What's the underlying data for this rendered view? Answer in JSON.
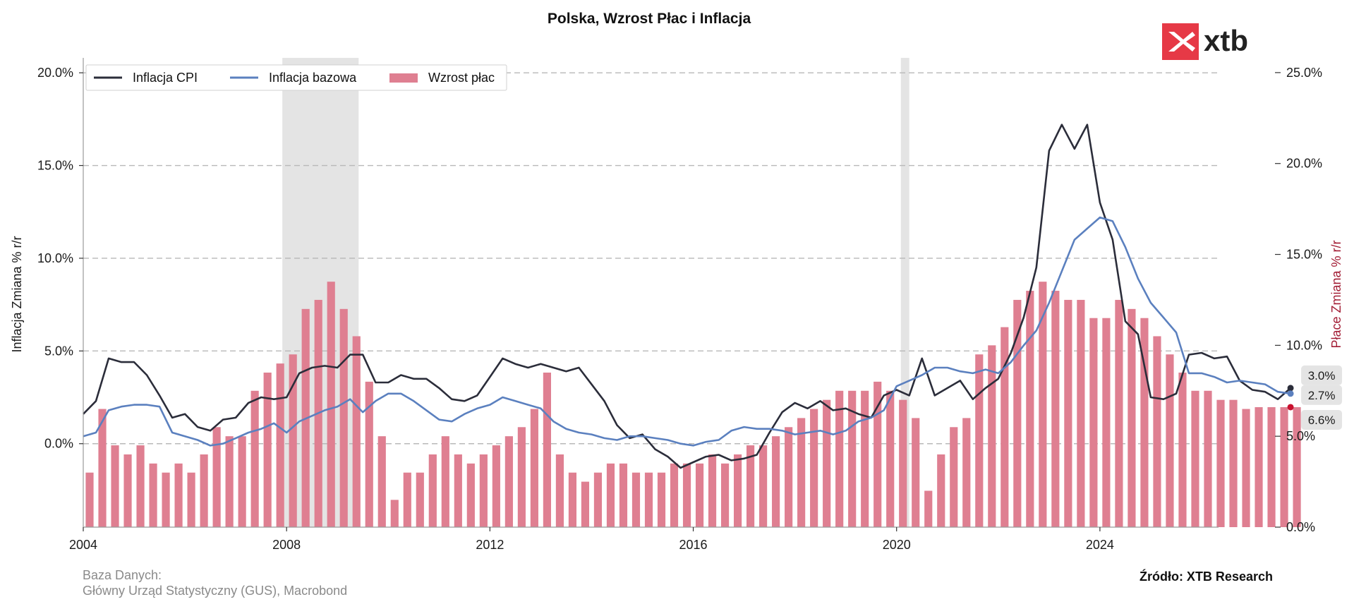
{
  "chart_data": {
    "type": "bar+line",
    "title": "Polska, Wzrost Płac i Inflacja",
    "left_axis": {
      "label": "Inflacja Zmiana % r/r",
      "ylim": [
        -4.5,
        20.5
      ],
      "ticks": [
        0,
        5,
        10,
        15,
        20
      ],
      "tick_labels": [
        "0.0%",
        "5.0%",
        "10.0%",
        "15.0%",
        "20.0%"
      ]
    },
    "right_axis": {
      "label": "Płace Zmiana % r/r",
      "ylim": [
        0,
        25.5
      ],
      "ticks": [
        0,
        5,
        10,
        15,
        20,
        25
      ],
      "tick_labels": [
        "0.0%",
        "5.0%",
        "10.0%",
        "15.0%",
        "20.0%",
        "25.0%"
      ]
    },
    "x_axis": {
      "range": [
        "2004-01",
        "2026-05"
      ],
      "ticks": [
        2004,
        2008,
        2012,
        2016,
        2020,
        2024
      ],
      "tick_labels": [
        "2004",
        "2008",
        "2012",
        "2016",
        "2020",
        "2024"
      ]
    },
    "grid": "horizontal dashed",
    "legend_position": "top-left",
    "shaded_periods": [
      [
        "2007-12",
        "2009-06"
      ],
      [
        "2020-02",
        "2020-04"
      ]
    ],
    "series": [
      {
        "name": "Inflacja CPI",
        "type": "line",
        "axis": "left",
        "color": "#2b2d3a",
        "interval": "quarterly",
        "start": "2004-01",
        "values": [
          1.6,
          2.3,
          4.6,
          4.4,
          4.4,
          3.7,
          2.6,
          1.4,
          1.6,
          0.9,
          0.7,
          1.3,
          1.4,
          2.2,
          2.5,
          2.4,
          2.5,
          3.8,
          4.1,
          4.2,
          4.1,
          4.8,
          4.8,
          3.3,
          3.3,
          3.7,
          3.5,
          3.5,
          3.0,
          2.4,
          2.3,
          2.6,
          3.6,
          4.6,
          4.3,
          4.1,
          4.3,
          4.1,
          3.9,
          4.1,
          3.2,
          2.3,
          1.0,
          0.3,
          0.5,
          -0.3,
          -0.7,
          -1.3,
          -1.0,
          -0.7,
          -0.6,
          -0.9,
          -0.8,
          -0.6,
          0.6,
          1.7,
          2.2,
          1.9,
          2.3,
          1.8,
          1.9,
          1.6,
          1.4,
          2.6,
          2.9,
          2.6,
          4.6,
          2.6,
          3.0,
          3.4,
          2.4,
          3.0,
          3.5,
          4.9,
          6.8,
          9.5,
          15.8,
          17.2,
          15.9,
          17.2,
          13.0,
          11.0,
          6.6,
          5.9,
          2.5,
          2.4,
          2.7,
          4.8,
          4.9,
          4.6,
          4.7,
          3.4,
          2.9,
          2.8,
          2.4,
          3.0
        ]
      },
      {
        "name": "Inflacja bazowa",
        "type": "line",
        "axis": "left",
        "color": "#5b80bf",
        "interval": "quarterly",
        "start": "2004-01",
        "values": [
          0.4,
          0.6,
          1.8,
          2.0,
          2.1,
          2.1,
          2.0,
          0.6,
          0.4,
          0.2,
          -0.1,
          0.0,
          0.3,
          0.6,
          0.8,
          1.1,
          0.6,
          1.2,
          1.5,
          1.8,
          2.0,
          2.4,
          1.7,
          2.3,
          2.7,
          2.7,
          2.3,
          1.8,
          1.3,
          1.2,
          1.6,
          1.9,
          2.1,
          2.5,
          2.3,
          2.1,
          1.9,
          1.2,
          0.8,
          0.6,
          0.5,
          0.3,
          0.2,
          0.4,
          0.4,
          0.3,
          0.2,
          0.0,
          -0.1,
          0.1,
          0.2,
          0.7,
          0.9,
          0.8,
          0.8,
          0.7,
          0.5,
          0.6,
          0.7,
          0.5,
          0.7,
          1.2,
          1.4,
          1.8,
          3.1,
          3.4,
          3.7,
          4.1,
          4.1,
          3.9,
          3.8,
          4.0,
          3.8,
          4.4,
          5.3,
          6.1,
          7.6,
          9.3,
          11.0,
          11.6,
          12.2,
          12.0,
          10.6,
          8.9,
          7.6,
          6.8,
          6.0,
          3.8,
          3.8,
          3.6,
          3.3,
          3.4,
          3.3,
          3.2,
          2.8,
          2.7
        ]
      },
      {
        "name": "Wzrost płac",
        "type": "bar",
        "axis": "right",
        "color": "#df7f91",
        "interval": "quarterly",
        "start": "2004-01",
        "values": [
          3.0,
          6.5,
          4.5,
          4.0,
          4.5,
          3.5,
          3.0,
          3.5,
          3.0,
          4.0,
          5.5,
          5.0,
          5.0,
          7.5,
          8.5,
          9.0,
          9.5,
          12.0,
          12.5,
          13.5,
          12.0,
          10.5,
          8.0,
          5.0,
          1.5,
          3.0,
          3.0,
          4.0,
          5.0,
          4.0,
          3.5,
          4.0,
          4.5,
          5.0,
          5.5,
          6.5,
          8.5,
          4.0,
          3.0,
          2.5,
          3.0,
          3.5,
          3.5,
          3.0,
          3.0,
          3.0,
          3.5,
          3.5,
          3.5,
          4.0,
          3.5,
          4.0,
          4.5,
          4.5,
          5.0,
          5.5,
          6.0,
          6.5,
          7.0,
          7.5,
          7.5,
          7.5,
          8.0,
          7.5,
          7.0,
          6.0,
          2.0,
          4.0,
          5.5,
          6.0,
          9.5,
          10.0,
          11.0,
          12.5,
          13.0,
          13.5,
          13.0,
          12.5,
          12.5,
          11.5,
          11.5,
          12.5,
          12.0,
          11.5,
          10.5,
          9.5,
          8.5,
          7.5,
          7.5,
          7.0,
          7.0,
          6.5,
          6.6,
          6.6,
          6.6,
          6.6
        ]
      }
    ],
    "latest_values": {
      "cpi": "3.0%",
      "core": "2.7%",
      "wages": "6.6%"
    }
  },
  "legend": [
    {
      "label": "Inflacja CPI",
      "color": "#2b2d3a",
      "kind": "line"
    },
    {
      "label": "Inflacja bazowa",
      "color": "#5b80bf",
      "kind": "line"
    },
    {
      "label": "Wzrost płac",
      "color": "#df7f91",
      "kind": "bar"
    }
  ],
  "branding": {
    "logo_text": "xtb",
    "logo_color": "#e63946"
  },
  "footer": {
    "source_title": "Baza Danych:",
    "source_detail": "Główny Urząd Statystyczny (GUS), Macrobond",
    "credit": "Źródło: XTB Research"
  }
}
